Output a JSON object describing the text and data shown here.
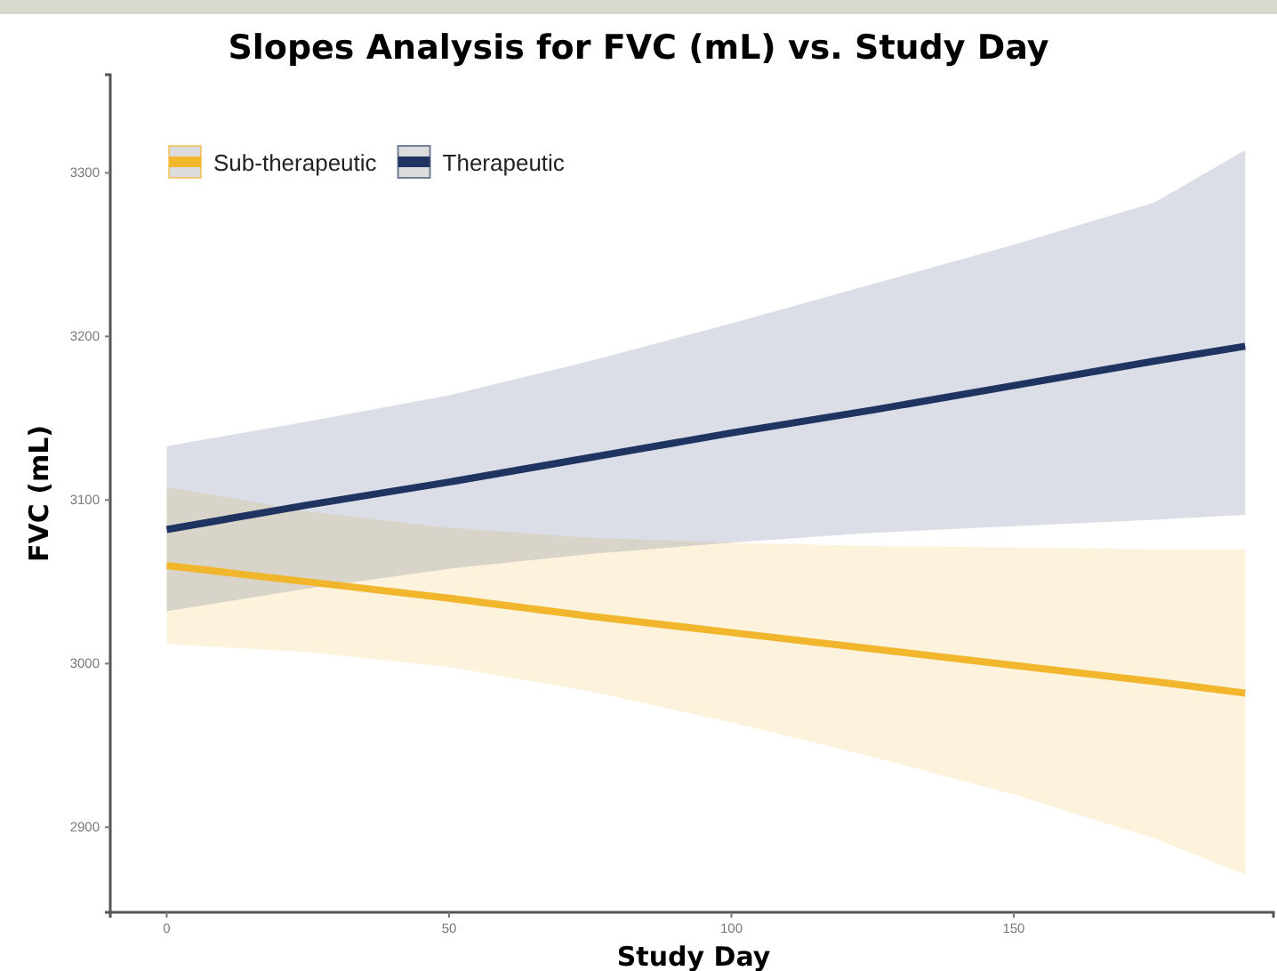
{
  "chart_data": {
    "type": "line",
    "title": "Slopes Analysis for FVC (mL) vs. Study Day",
    "xlabel": "Study Day",
    "ylabel": "FVC (mL)",
    "x": [
      0,
      25,
      50,
      75,
      100,
      125,
      150,
      175,
      191
    ],
    "series": [
      {
        "name": "Sub-therapeutic",
        "color": "#f2b62c",
        "values": [
          3060,
          3050,
          3040,
          3029,
          3019,
          3009,
          2999,
          2989,
          2982
        ],
        "lower": [
          3012,
          3007,
          2998,
          2983,
          2964,
          2943,
          2920,
          2893,
          2871
        ],
        "upper": [
          3108,
          3093,
          3083,
          3077,
          3074,
          3072,
          3071,
          3070,
          3070
        ]
      },
      {
        "name": "Therapeutic",
        "color": "#1f3461",
        "values": [
          3082,
          3097,
          3111,
          3126,
          3141,
          3155,
          3170,
          3185,
          3194
        ],
        "lower": [
          3032,
          3046,
          3058,
          3067,
          3074,
          3080,
          3084,
          3088,
          3091
        ],
        "upper": [
          3133,
          3148,
          3164,
          3185,
          3208,
          3232,
          3256,
          3282,
          3314
        ]
      }
    ],
    "xlim": [
      -10,
      196
    ],
    "xticks": [
      0,
      50,
      100,
      150
    ],
    "ylim": [
      2848,
      3360
    ],
    "yticks": [
      2900,
      3000,
      3100,
      3200,
      3300
    ],
    "grid": false,
    "legend": "top left",
    "marker": "none",
    "line_style": "solid"
  }
}
